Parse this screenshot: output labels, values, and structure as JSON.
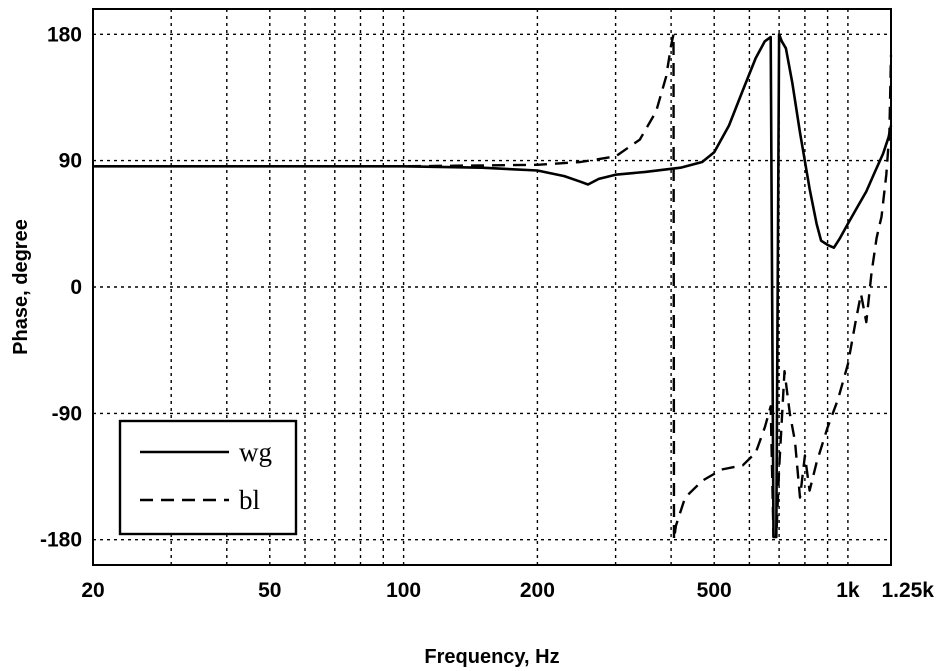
{
  "chart_data": {
    "type": "line",
    "title": "",
    "xlabel": "Frequency, Hz",
    "ylabel": "Phase, degree",
    "x_scale": "log",
    "xlim": [
      20,
      1250
    ],
    "ylim": [
      -198,
      198
    ],
    "grid": true,
    "legend_position": "bottom-left",
    "x_ticks": [
      {
        "value": 20,
        "label": "20"
      },
      {
        "value": 50,
        "label": "50"
      },
      {
        "value": 100,
        "label": "100"
      },
      {
        "value": 200,
        "label": "200"
      },
      {
        "value": 500,
        "label": "500"
      },
      {
        "value": 1000,
        "label": "1k"
      },
      {
        "value": 1250,
        "label": "1.25k"
      }
    ],
    "y_ticks": [
      {
        "value": 180,
        "label": "180"
      },
      {
        "value": 90,
        "label": "90"
      },
      {
        "value": 0,
        "label": "0"
      },
      {
        "value": -90,
        "label": "-90"
      },
      {
        "value": -180,
        "label": "-180"
      }
    ],
    "series": [
      {
        "name": "wg",
        "style": "solid",
        "points": [
          [
            20,
            86
          ],
          [
            50,
            86
          ],
          [
            100,
            86
          ],
          [
            150,
            85
          ],
          [
            200,
            83
          ],
          [
            230,
            79
          ],
          [
            250,
            75
          ],
          [
            260,
            73
          ],
          [
            275,
            77
          ],
          [
            300,
            80
          ],
          [
            350,
            82
          ],
          [
            420,
            85
          ],
          [
            470,
            89
          ],
          [
            500,
            96
          ],
          [
            540,
            115
          ],
          [
            580,
            140
          ],
          [
            620,
            163
          ],
          [
            650,
            175
          ],
          [
            670,
            178
          ],
          [
            680,
            -178
          ],
          [
            690,
            -178
          ],
          [
            700,
            180
          ],
          [
            710,
            175
          ],
          [
            725,
            170
          ],
          [
            750,
            145
          ],
          [
            780,
            110
          ],
          [
            820,
            70
          ],
          [
            850,
            45
          ],
          [
            870,
            33
          ],
          [
            900,
            30
          ],
          [
            930,
            28
          ],
          [
            960,
            35
          ],
          [
            1000,
            45
          ],
          [
            1050,
            57
          ],
          [
            1100,
            68
          ],
          [
            1150,
            82
          ],
          [
            1200,
            95
          ],
          [
            1235,
            107
          ],
          [
            1250,
            115
          ]
        ]
      },
      {
        "name": "bl",
        "style": "dashed",
        "points": [
          [
            20,
            86
          ],
          [
            100,
            86
          ],
          [
            200,
            87
          ],
          [
            250,
            89
          ],
          [
            300,
            93
          ],
          [
            340,
            105
          ],
          [
            370,
            125
          ],
          [
            390,
            150
          ],
          [
            400,
            172
          ],
          [
            405,
            180
          ],
          [
            406,
            -180
          ],
          [
            410,
            -170
          ],
          [
            430,
            -150
          ],
          [
            470,
            -138
          ],
          [
            520,
            -130
          ],
          [
            580,
            -127
          ],
          [
            620,
            -118
          ],
          [
            650,
            -100
          ],
          [
            670,
            -85
          ],
          [
            680,
            -178
          ],
          [
            690,
            -178
          ],
          [
            700,
            -130
          ],
          [
            720,
            -60
          ],
          [
            740,
            -90
          ],
          [
            760,
            -110
          ],
          [
            780,
            -150
          ],
          [
            800,
            -120
          ],
          [
            820,
            -145
          ],
          [
            850,
            -125
          ],
          [
            900,
            -100
          ],
          [
            950,
            -80
          ],
          [
            1000,
            -55
          ],
          [
            1040,
            -25
          ],
          [
            1070,
            -5
          ],
          [
            1100,
            -25
          ],
          [
            1130,
            10
          ],
          [
            1160,
            35
          ],
          [
            1190,
            50
          ],
          [
            1220,
            80
          ],
          [
            1240,
            110
          ],
          [
            1250,
            165
          ]
        ]
      }
    ]
  }
}
